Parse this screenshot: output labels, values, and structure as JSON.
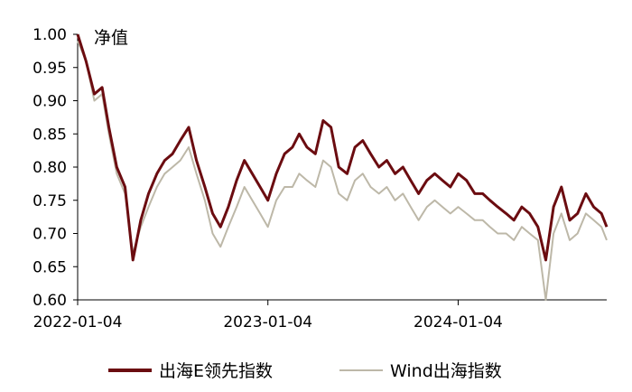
{
  "chart_data": {
    "type": "line",
    "ylabel": "净值",
    "ylim": [
      0.6,
      1.0
    ],
    "yticks": [
      "1.00",
      "0.95",
      "0.90",
      "0.85",
      "0.80",
      "0.75",
      "0.70",
      "0.65",
      "0.60"
    ],
    "xlim": [
      "2022-01-04",
      "2024-10-15"
    ],
    "xticks": [
      "2022-01-04",
      "2023-01-04",
      "2024-01-04"
    ],
    "legend_position": "bottom",
    "series": [
      {
        "name": "出海E领先指数",
        "color": "#6b0c10",
        "x": [
          "2022-01-04",
          "2022-01-20",
          "2022-02-05",
          "2022-02-20",
          "2022-03-05",
          "2022-03-20",
          "2022-04-05",
          "2022-04-20",
          "2022-05-05",
          "2022-05-20",
          "2022-06-05",
          "2022-06-20",
          "2022-07-05",
          "2022-07-20",
          "2022-08-05",
          "2022-08-20",
          "2022-09-05",
          "2022-09-20",
          "2022-10-05",
          "2022-10-20",
          "2022-11-05",
          "2022-11-20",
          "2022-12-05",
          "2022-12-20",
          "2023-01-04",
          "2023-01-20",
          "2023-02-05",
          "2023-02-20",
          "2023-03-05",
          "2023-03-20",
          "2023-04-05",
          "2023-04-20",
          "2023-05-05",
          "2023-05-20",
          "2023-06-05",
          "2023-06-20",
          "2023-07-05",
          "2023-07-20",
          "2023-08-05",
          "2023-08-20",
          "2023-09-05",
          "2023-09-20",
          "2023-10-05",
          "2023-10-20",
          "2023-11-05",
          "2023-11-20",
          "2023-12-05",
          "2023-12-20",
          "2024-01-04",
          "2024-01-20",
          "2024-02-05",
          "2024-02-20",
          "2024-03-05",
          "2024-03-20",
          "2024-04-05",
          "2024-04-20",
          "2024-05-05",
          "2024-05-20",
          "2024-06-05",
          "2024-06-20",
          "2024-07-05",
          "2024-07-20",
          "2024-08-05",
          "2024-08-20",
          "2024-09-05",
          "2024-09-20",
          "2024-10-05",
          "2024-10-15"
        ],
        "values": [
          1.0,
          0.96,
          0.91,
          0.92,
          0.86,
          0.8,
          0.77,
          0.66,
          0.72,
          0.76,
          0.79,
          0.81,
          0.82,
          0.84,
          0.86,
          0.81,
          0.77,
          0.73,
          0.71,
          0.74,
          0.78,
          0.81,
          0.79,
          0.77,
          0.75,
          0.79,
          0.82,
          0.83,
          0.85,
          0.83,
          0.82,
          0.87,
          0.86,
          0.8,
          0.79,
          0.83,
          0.84,
          0.82,
          0.8,
          0.81,
          0.79,
          0.8,
          0.78,
          0.76,
          0.78,
          0.79,
          0.78,
          0.77,
          0.79,
          0.78,
          0.76,
          0.76,
          0.75,
          0.74,
          0.73,
          0.72,
          0.74,
          0.73,
          0.71,
          0.66,
          0.74,
          0.77,
          0.72,
          0.73,
          0.76,
          0.74,
          0.73,
          0.71
        ]
      },
      {
        "name": "Wind出海指数",
        "color": "#bdb8a8",
        "x": [
          "2022-01-04",
          "2022-01-20",
          "2022-02-05",
          "2022-02-20",
          "2022-03-05",
          "2022-03-20",
          "2022-04-05",
          "2022-04-20",
          "2022-05-05",
          "2022-05-20",
          "2022-06-05",
          "2022-06-20",
          "2022-07-05",
          "2022-07-20",
          "2022-08-05",
          "2022-08-20",
          "2022-09-05",
          "2022-09-20",
          "2022-10-05",
          "2022-10-20",
          "2022-11-05",
          "2022-11-20",
          "2022-12-05",
          "2022-12-20",
          "2023-01-04",
          "2023-01-20",
          "2023-02-05",
          "2023-02-20",
          "2023-03-05",
          "2023-03-20",
          "2023-04-05",
          "2023-04-20",
          "2023-05-05",
          "2023-05-20",
          "2023-06-05",
          "2023-06-20",
          "2023-07-05",
          "2023-07-20",
          "2023-08-05",
          "2023-08-20",
          "2023-09-05",
          "2023-09-20",
          "2023-10-05",
          "2023-10-20",
          "2023-11-05",
          "2023-11-20",
          "2023-12-05",
          "2023-12-20",
          "2024-01-04",
          "2024-01-20",
          "2024-02-05",
          "2024-02-20",
          "2024-03-05",
          "2024-03-20",
          "2024-04-05",
          "2024-04-20",
          "2024-05-05",
          "2024-05-20",
          "2024-06-05",
          "2024-06-20",
          "2024-07-05",
          "2024-07-20",
          "2024-08-05",
          "2024-08-20",
          "2024-09-05",
          "2024-09-20",
          "2024-10-05",
          "2024-10-15"
        ],
        "values": [
          0.99,
          0.96,
          0.9,
          0.91,
          0.85,
          0.79,
          0.76,
          0.67,
          0.71,
          0.74,
          0.77,
          0.79,
          0.8,
          0.81,
          0.83,
          0.79,
          0.75,
          0.7,
          0.68,
          0.71,
          0.74,
          0.77,
          0.75,
          0.73,
          0.71,
          0.75,
          0.77,
          0.77,
          0.79,
          0.78,
          0.77,
          0.81,
          0.8,
          0.76,
          0.75,
          0.78,
          0.79,
          0.77,
          0.76,
          0.77,
          0.75,
          0.76,
          0.74,
          0.72,
          0.74,
          0.75,
          0.74,
          0.73,
          0.74,
          0.73,
          0.72,
          0.72,
          0.71,
          0.7,
          0.7,
          0.69,
          0.71,
          0.7,
          0.69,
          0.6,
          0.7,
          0.73,
          0.69,
          0.7,
          0.73,
          0.72,
          0.71,
          0.69
        ]
      }
    ]
  }
}
